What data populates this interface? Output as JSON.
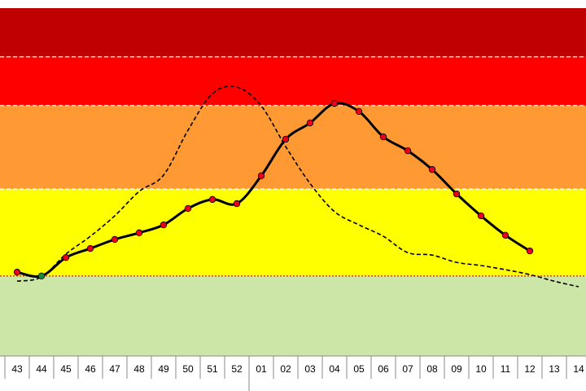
{
  "chart_data": {
    "type": "line",
    "categories": [
      "43",
      "44",
      "45",
      "46",
      "47",
      "48",
      "49",
      "50",
      "51",
      "52",
      "01",
      "02",
      "03",
      "04",
      "05",
      "06",
      "07",
      "08",
      "09",
      "10",
      "11",
      "12",
      "13",
      "14"
    ],
    "ylim": [
      0,
      100
    ],
    "bands": [
      {
        "from": 0,
        "to": 23,
        "color": "#cce6a8"
      },
      {
        "from": 23,
        "to": 48,
        "color": "#ffff00"
      },
      {
        "from": 48,
        "to": 72,
        "color": "#ff9933"
      },
      {
        "from": 72,
        "to": 86,
        "color": "#ff0000"
      },
      {
        "from": 86,
        "to": 100,
        "color": "#c00000"
      }
    ],
    "series": [
      {
        "color": "#000000",
        "style": "dashed",
        "values": [
          21.5,
          22.7,
          29.3,
          34.4,
          40.3,
          47.3,
          52.0,
          64.9,
          75.4,
          77.3,
          71.9,
          60.2,
          49.6,
          41.5,
          37.7,
          34.4,
          29.7,
          29.0,
          26.9,
          26.0,
          24.8,
          23.4,
          21.5,
          19.9
        ]
      },
      {
        "color": "#000000",
        "style": "solid",
        "markers": true,
        "point_colors": [
          "#e8001c",
          "#1a8a3a",
          "#e8001c",
          "#e8001c",
          "#e8001c",
          "#e8001c",
          "#e8001c",
          "#e8001c",
          "#e8001c",
          "#e8001c",
          "#e8001c",
          "#e8001c",
          "#e8001c",
          "#e8001c",
          "#e8001c",
          "#e8001c",
          "#e8001c",
          "#e8001c",
          "#e8001c",
          "#e8001c",
          "#e8001c",
          "#e8001c",
          null,
          null
        ],
        "values": [
          24.1,
          23.0,
          28.3,
          30.9,
          33.5,
          35.4,
          37.7,
          42.4,
          45.0,
          43.8,
          51.8,
          62.3,
          67.0,
          72.6,
          70.3,
          63.0,
          59.0,
          53.6,
          46.6,
          40.3,
          34.7,
          30.2,
          null,
          null
        ]
      }
    ]
  }
}
